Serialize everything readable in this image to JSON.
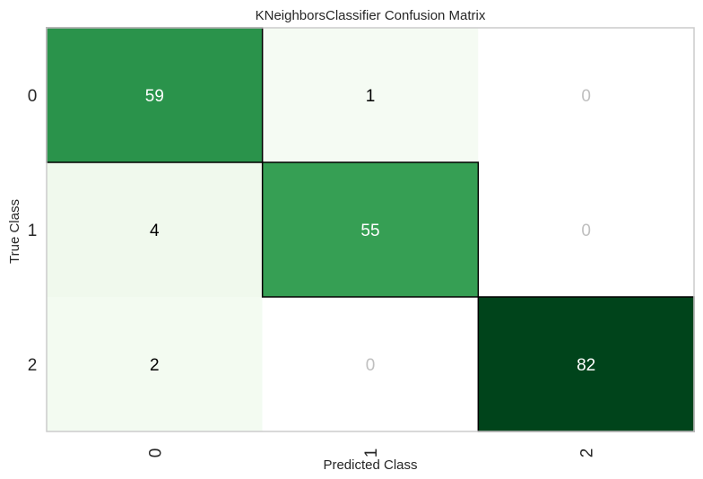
{
  "chart_data": {
    "type": "heatmap",
    "title": "KNeighborsClassifier Confusion Matrix",
    "xlabel": "Predicted Class",
    "ylabel": "True Class",
    "x_categories": [
      "0",
      "1",
      "2"
    ],
    "y_categories": [
      "0",
      "1",
      "2"
    ],
    "values": [
      [
        59,
        1,
        0
      ],
      [
        4,
        55,
        0
      ],
      [
        2,
        0,
        82
      ]
    ],
    "colormap": "Greens",
    "colors": {
      "zero_text": "#bfbfbf",
      "dark_text": "#ffffff",
      "light_text": "#000000",
      "diagonal_outline": "#000000",
      "frame": "#cccccc"
    }
  }
}
